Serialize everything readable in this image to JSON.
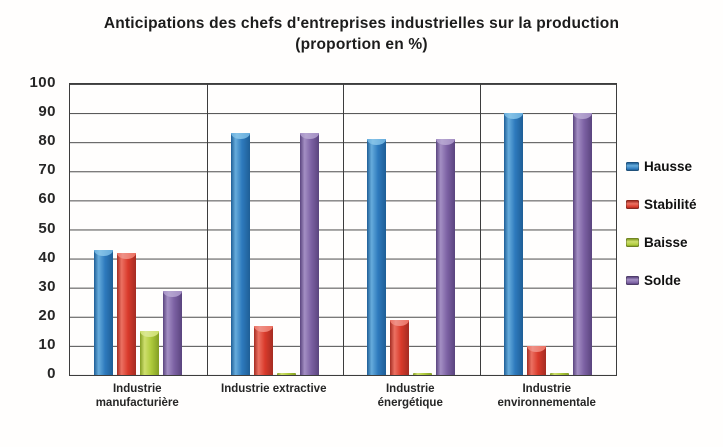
{
  "chart_data": {
    "type": "bar",
    "title": "Anticipations des chefs d'entreprises industrielles sur la production (proportion en %)",
    "categories": [
      "Industrie manufacturière",
      "Industrie extractive",
      "Industrie énergétique",
      "Industrie environnementale"
    ],
    "series": [
      {
        "name": "Hausse",
        "values": [
          43,
          83,
          81,
          90
        ],
        "color": "#2E7ABD",
        "color_dark": "#1E5E96",
        "color_light": "#66ACDC",
        "color_cap": "#85C2E7"
      },
      {
        "name": "Stabilité",
        "values": [
          42,
          17,
          19,
          10
        ],
        "color": "#D93A2B",
        "color_dark": "#A42C22",
        "color_light": "#EC7162",
        "color_cap": "#EF9187"
      },
      {
        "name": "Baisse",
        "values": [
          15,
          0,
          0,
          0
        ],
        "color": "#AFCB3C",
        "color_dark": "#839E23",
        "color_light": "#CEDF6E",
        "color_cap": "#DAE793"
      },
      {
        "name": "Solde",
        "values": [
          29,
          83,
          81,
          90
        ],
        "color": "#7D62A4",
        "color_dark": "#5A447E",
        "color_light": "#A48FC4",
        "color_cap": "#B6A6D1"
      }
    ],
    "xlabel": "",
    "ylabel": "",
    "ylim": [
      0,
      100
    ],
    "ytick_step": 10,
    "grid": true,
    "grid_color": "#4a4a4a",
    "legend_position": "right"
  }
}
